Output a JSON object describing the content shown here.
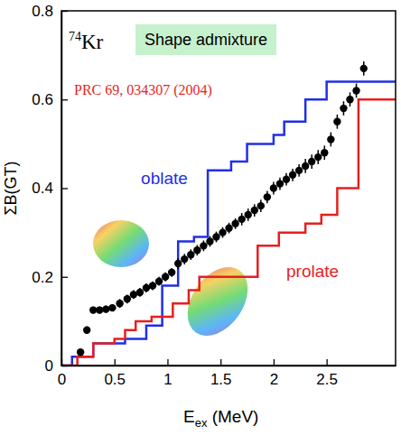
{
  "chart_data": {
    "type": "line",
    "x_label": [
      "E",
      "ex",
      " (MeV)"
    ],
    "y_label": "ΣB(GT)",
    "annotations": [
      "74",
      "Kr",
      "Shape admixture",
      "PRC 69, 034307 (2004)"
    ],
    "xlim": [
      0,
      3.15
    ],
    "ylim": [
      0,
      0.8
    ],
    "xticks": [
      0,
      0.5,
      1,
      1.5,
      2,
      2.5
    ],
    "yticks": [
      0,
      0.2,
      0.4,
      0.6,
      0.8
    ],
    "grid": false,
    "series": [
      {
        "name": "oblate",
        "color": "#1f2fe6",
        "type": "line",
        "line_style": "step",
        "x": [
          0,
          0.1,
          0.3,
          0.6,
          0.8,
          0.95,
          1.1,
          1.25,
          1.38,
          1.6,
          1.75,
          2.0,
          2.1,
          2.3,
          2.5,
          3.15
        ],
        "values": [
          0,
          0.02,
          0.05,
          0.06,
          0.09,
          0.18,
          0.28,
          0.29,
          0.44,
          0.46,
          0.5,
          0.52,
          0.55,
          0.6,
          0.64,
          0.64
        ]
      },
      {
        "name": "prolate",
        "color": "#e61f1f",
        "type": "line",
        "line_style": "step",
        "x": [
          0,
          0.15,
          0.3,
          0.5,
          0.6,
          0.7,
          0.85,
          1.05,
          1.2,
          1.3,
          1.85,
          2.05,
          2.3,
          2.45,
          2.6,
          2.8,
          3.15
        ],
        "values": [
          0,
          0.02,
          0.05,
          0.06,
          0.08,
          0.1,
          0.11,
          0.14,
          0.17,
          0.2,
          0.27,
          0.3,
          0.32,
          0.34,
          0.4,
          0.6,
          0.6
        ]
      },
      {
        "color": "#000000",
        "type": "scatter",
        "marker": "circle",
        "x": [
          0.18,
          0.24,
          0.3,
          0.36,
          0.42,
          0.48,
          0.55,
          0.62,
          0.68,
          0.74,
          0.8,
          0.86,
          0.92,
          0.98,
          1.04,
          1.1,
          1.16,
          1.22,
          1.28,
          1.34,
          1.4,
          1.46,
          1.52,
          1.58,
          1.64,
          1.7,
          1.76,
          1.82,
          1.88,
          1.94,
          2.0,
          2.06,
          2.12,
          2.18,
          2.24,
          2.3,
          2.36,
          2.42,
          2.48,
          2.54,
          2.6,
          2.66,
          2.72,
          2.78,
          2.85
        ],
        "values": [
          0.03,
          0.08,
          0.125,
          0.125,
          0.127,
          0.13,
          0.14,
          0.15,
          0.16,
          0.165,
          0.175,
          0.18,
          0.19,
          0.2,
          0.21,
          0.23,
          0.24,
          0.25,
          0.26,
          0.27,
          0.28,
          0.29,
          0.3,
          0.31,
          0.32,
          0.33,
          0.34,
          0.35,
          0.36,
          0.38,
          0.4,
          0.41,
          0.42,
          0.43,
          0.44,
          0.45,
          0.46,
          0.47,
          0.48,
          0.51,
          0.55,
          0.58,
          0.6,
          0.62,
          0.67
        ],
        "errors": [
          0.008,
          0.008,
          0.008,
          0.008,
          0.008,
          0.008,
          0.01,
          0.01,
          0.01,
          0.01,
          0.01,
          0.01,
          0.01,
          0.01,
          0.01,
          0.012,
          0.012,
          0.012,
          0.012,
          0.012,
          0.012,
          0.012,
          0.012,
          0.012,
          0.012,
          0.014,
          0.014,
          0.014,
          0.014,
          0.014,
          0.014,
          0.014,
          0.014,
          0.014,
          0.014,
          0.016,
          0.016,
          0.016,
          0.016,
          0.016,
          0.016,
          0.016,
          0.016,
          0.016,
          0.016
        ]
      }
    ]
  }
}
